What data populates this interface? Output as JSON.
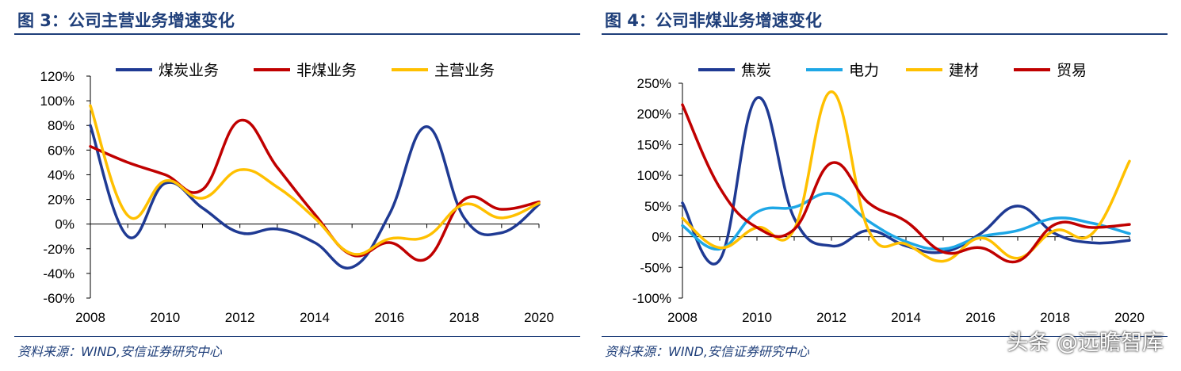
{
  "left": {
    "title": "图 3：公司主营业务增速变化",
    "source": "资料来源：WIND,安信证券研究中心"
  },
  "right": {
    "title": "图 4：公司非煤业务增速变化",
    "source": "资料来源：WIND,安信证券研究中心"
  },
  "watermark": "头条 @远瞻智库",
  "chart_data": [
    {
      "type": "line",
      "title": "图 3：公司主营业务增速变化",
      "x": [
        2008,
        2009,
        2010,
        2011,
        2012,
        2013,
        2014,
        2015,
        2016,
        2017,
        2018,
        2019,
        2020
      ],
      "xticks": [
        "2008",
        "2010",
        "2012",
        "2014",
        "2016",
        "2018",
        "2020"
      ],
      "yticks": [
        "120%",
        "100%",
        "80%",
        "60%",
        "40%",
        "20%",
        "0%",
        "-20%",
        "-40%",
        "-60%"
      ],
      "ylim": [
        -60,
        120
      ],
      "legend_position": "top",
      "series": [
        {
          "name": "煤炭业务",
          "color": "#1f3a93",
          "values": [
            80,
            -10,
            33,
            13,
            -7,
            -4,
            -15,
            -35,
            8,
            79,
            5,
            -7,
            16
          ]
        },
        {
          "name": "非煤业务",
          "color": "#c00000",
          "values": [
            63,
            50,
            40,
            28,
            84,
            46,
            8,
            -25,
            -15,
            -28,
            20,
            12,
            18
          ]
        },
        {
          "name": "主营业务",
          "color": "#ffc000",
          "values": [
            96,
            7,
            35,
            21,
            44,
            30,
            5,
            -24,
            -12,
            -10,
            16,
            5,
            17
          ]
        }
      ]
    },
    {
      "type": "line",
      "title": "图 4：公司非煤业务增速变化",
      "x": [
        2008,
        2009,
        2010,
        2011,
        2012,
        2013,
        2014,
        2015,
        2016,
        2017,
        2018,
        2019,
        2020
      ],
      "xticks": [
        "2008",
        "2010",
        "2012",
        "2014",
        "2016",
        "2018",
        "2020"
      ],
      "yticks": [
        "250%",
        "200%",
        "150%",
        "100%",
        "50%",
        "0%",
        "-50%",
        "-100%"
      ],
      "ylim": [
        -100,
        250
      ],
      "legend_position": "top",
      "series": [
        {
          "name": "焦炭",
          "color": "#1f3a93",
          "values": [
            55,
            -38,
            226,
            30,
            -15,
            10,
            -15,
            -25,
            5,
            50,
            5,
            -10,
            -6
          ]
        },
        {
          "name": "电力",
          "color": "#1ea7e6",
          "values": [
            18,
            -20,
            40,
            48,
            70,
            25,
            -8,
            -20,
            0,
            10,
            30,
            22,
            5
          ]
        },
        {
          "name": "建材",
          "color": "#ffc000",
          "values": [
            30,
            -18,
            15,
            12,
            236,
            10,
            -12,
            -40,
            -2,
            -35,
            10,
            5,
            123
          ]
        },
        {
          "name": "贸易",
          "color": "#c00000",
          "values": [
            215,
            80,
            15,
            12,
            120,
            55,
            25,
            -25,
            -18,
            -40,
            20,
            15,
            20
          ]
        }
      ]
    }
  ]
}
